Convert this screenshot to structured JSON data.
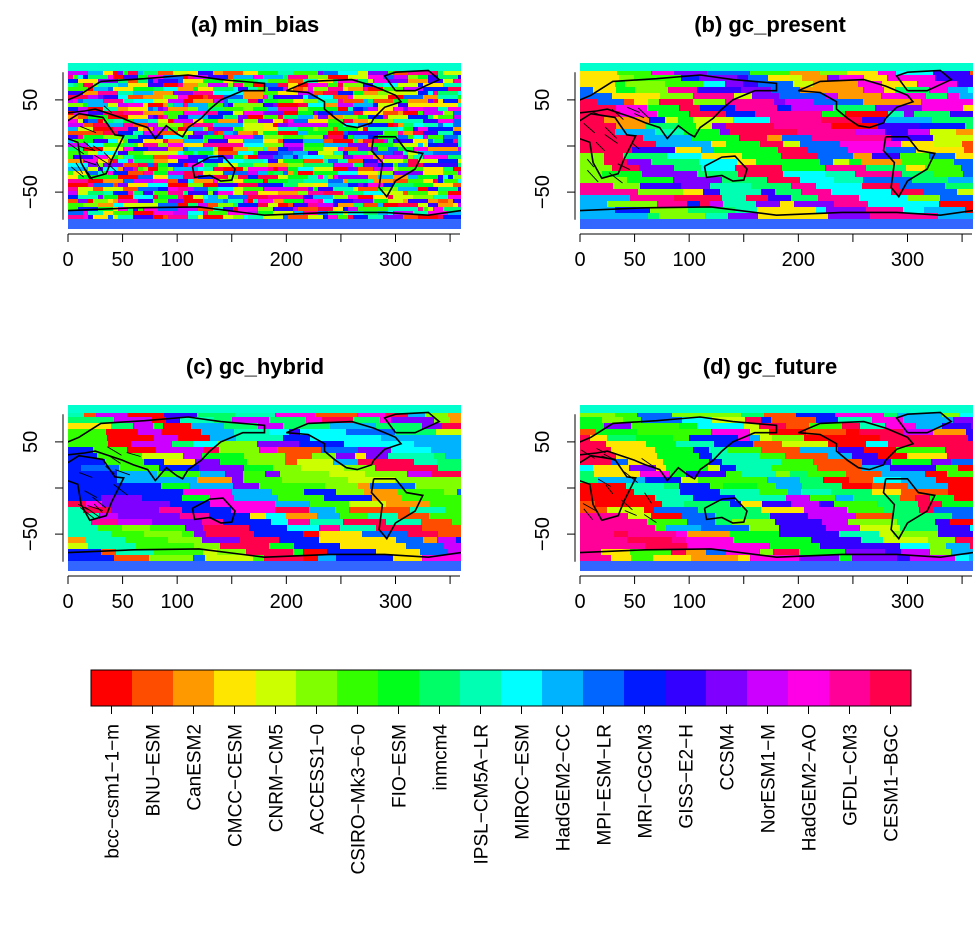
{
  "chart_data": [
    {
      "type": "heatmap",
      "title": "(a) min_bias",
      "xticks": [
        0,
        50,
        100,
        200,
        300
      ],
      "yticks": [
        50,
        -50
      ],
      "xlim": [
        0,
        360
      ],
      "ylim": [
        -90,
        90
      ],
      "pattern": "fine-grained, noisy"
    },
    {
      "type": "heatmap",
      "title": "(b) gc_present",
      "xticks": [
        0,
        50,
        100,
        200,
        300
      ],
      "yticks": [
        50,
        -50
      ],
      "xlim": [
        0,
        360
      ],
      "ylim": [
        -90,
        90
      ],
      "pattern": "coarse patches"
    },
    {
      "type": "heatmap",
      "title": "(c) gc_hybrid",
      "xticks": [
        0,
        50,
        100,
        200,
        300
      ],
      "yticks": [
        50,
        -50
      ],
      "xlim": [
        0,
        360
      ],
      "ylim": [
        -90,
        90
      ],
      "pattern": "coarse patches"
    },
    {
      "type": "heatmap",
      "title": "(d) gc_future",
      "xticks": [
        0,
        50,
        100,
        200,
        300
      ],
      "yticks": [
        50,
        -50
      ],
      "xlim": [
        0,
        360
      ],
      "ylim": [
        -90,
        90
      ],
      "pattern": "coarse patches"
    }
  ],
  "legend": {
    "models": [
      {
        "name": "bcc−csm1−1−m",
        "color": "#ff0000"
      },
      {
        "name": "BNU−ESM",
        "color": "#ff4d00"
      },
      {
        "name": "CanESM2",
        "color": "#ff9900"
      },
      {
        "name": "CMCC−CESM",
        "color": "#ffe600"
      },
      {
        "name": "CNRM−CM5",
        "color": "#ccff00"
      },
      {
        "name": "ACCESS1−0",
        "color": "#80ff00"
      },
      {
        "name": "CSIRO−Mk3−6−0",
        "color": "#33ff00"
      },
      {
        "name": "FIO−ESM",
        "color": "#00ff1a"
      },
      {
        "name": "inmcm4",
        "color": "#00ff66"
      },
      {
        "name": "IPSL−CM5A−LR",
        "color": "#00ffb3"
      },
      {
        "name": "MIROC−ESM",
        "color": "#00ffff"
      },
      {
        "name": "HadGEM2−CC",
        "color": "#00b3ff"
      },
      {
        "name": "MPI−ESM−LR",
        "color": "#0066ff"
      },
      {
        "name": "MRI−CGCM3",
        "color": "#001aff"
      },
      {
        "name": "GISS−E2−H",
        "color": "#3300ff"
      },
      {
        "name": "CCSM4",
        "color": "#8000ff"
      },
      {
        "name": "NorESM1−M",
        "color": "#cc00ff"
      },
      {
        "name": "HadGEM2−AO",
        "color": "#ff00e6"
      },
      {
        "name": "GFDL−CM3",
        "color": "#ff0099"
      },
      {
        "name": "CESM1−BGC",
        "color": "#ff004d"
      }
    ]
  }
}
